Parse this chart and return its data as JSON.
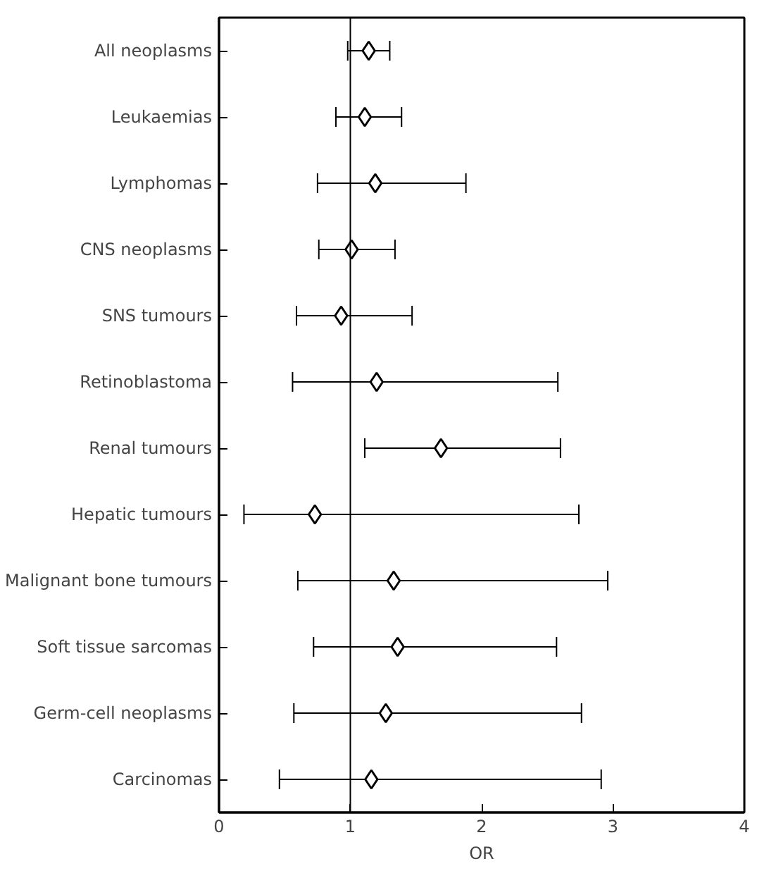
{
  "chart_data": {
    "type": "scatter",
    "orientation": "horizontal",
    "xlabel": "OR",
    "categories": [
      "All neoplasms",
      "Leukaemias",
      "Lymphomas",
      "CNS neoplasms",
      "SNS tumours",
      "Retinoblastoma",
      "Renal tumours",
      "Hepatic tumours",
      "Malignant bone tumours",
      "Soft tissue sarcomas",
      "Germ-cell neoplasms",
      "Carcinomas"
    ],
    "values": [
      1.14,
      1.11,
      1.19,
      1.01,
      0.93,
      1.2,
      1.69,
      0.73,
      1.33,
      1.36,
      1.27,
      1.16
    ],
    "errors": [
      [
        0.98,
        1.3
      ],
      [
        0.89,
        1.39
      ],
      [
        0.75,
        1.88
      ],
      [
        0.76,
        1.34
      ],
      [
        0.59,
        1.47
      ],
      [
        0.56,
        2.58
      ],
      [
        1.11,
        2.6
      ],
      [
        0.19,
        2.74
      ],
      [
        0.6,
        2.96
      ],
      [
        0.72,
        2.57
      ],
      [
        0.57,
        2.76
      ],
      [
        0.46,
        2.91
      ]
    ],
    "color": "#000000",
    "marker": "diamond",
    "grid": false,
    "xlim": [
      0,
      4
    ],
    "xticks": [
      0,
      1,
      2,
      3,
      4
    ],
    "ref_lines": [
      {
        "axis": "x",
        "value": 1
      }
    ]
  }
}
